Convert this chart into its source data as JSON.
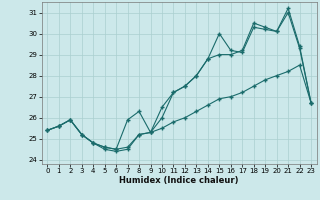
{
  "xlabel": "Humidex (Indice chaleur)",
  "xlim": [
    -0.5,
    23.5
  ],
  "ylim": [
    23.8,
    31.5
  ],
  "yticks": [
    24,
    25,
    26,
    27,
    28,
    29,
    30,
    31
  ],
  "xticks": [
    0,
    1,
    2,
    3,
    4,
    5,
    6,
    7,
    8,
    9,
    10,
    11,
    12,
    13,
    14,
    15,
    16,
    17,
    18,
    19,
    20,
    21,
    22,
    23
  ],
  "bg_color": "#cce8ea",
  "line_color": "#1a6b6b",
  "grid_color": "#aacfcf",
  "series1_x": [
    0,
    1,
    2,
    3,
    4,
    5,
    6,
    7,
    8,
    9,
    10,
    11,
    12,
    13,
    14,
    15,
    16,
    17,
    18,
    19,
    20,
    21,
    22,
    23
  ],
  "series1_y": [
    25.4,
    25.6,
    25.9,
    25.2,
    24.8,
    24.6,
    24.5,
    24.6,
    25.2,
    25.3,
    25.5,
    25.8,
    26.0,
    26.3,
    26.6,
    26.9,
    27.0,
    27.2,
    27.5,
    27.8,
    28.0,
    28.2,
    28.5,
    26.7
  ],
  "series2_x": [
    0,
    1,
    2,
    3,
    4,
    5,
    6,
    7,
    8,
    9,
    10,
    11,
    12,
    13,
    14,
    15,
    16,
    17,
    18,
    19,
    20,
    21,
    22,
    23
  ],
  "series2_y": [
    25.4,
    25.6,
    25.9,
    25.2,
    24.8,
    24.6,
    24.5,
    25.9,
    26.3,
    25.3,
    26.5,
    27.2,
    27.5,
    28.0,
    28.8,
    30.0,
    29.2,
    29.1,
    30.3,
    30.2,
    30.1,
    31.0,
    29.3,
    26.7
  ],
  "series3_x": [
    0,
    1,
    2,
    3,
    4,
    5,
    6,
    7,
    8,
    9,
    10,
    11,
    12,
    13,
    14,
    15,
    16,
    17,
    18,
    19,
    20,
    21,
    22,
    23
  ],
  "series3_y": [
    25.4,
    25.6,
    25.9,
    25.2,
    24.8,
    24.5,
    24.4,
    24.5,
    25.2,
    25.3,
    26.0,
    27.2,
    27.5,
    28.0,
    28.8,
    29.0,
    29.0,
    29.2,
    30.5,
    30.3,
    30.1,
    31.2,
    29.4,
    26.7
  ]
}
